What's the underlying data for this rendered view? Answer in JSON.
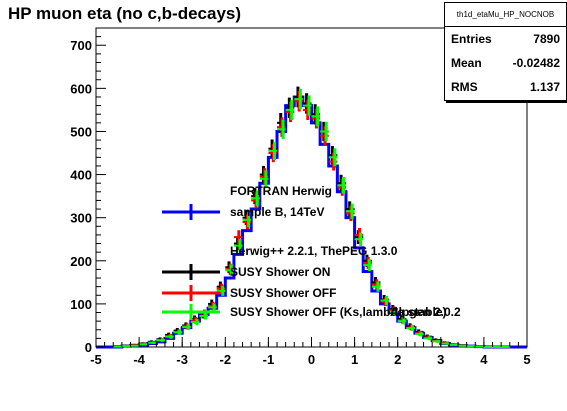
{
  "title": "HP muon eta (no c,b-decays)",
  "stats": {
    "name": "th1d_etaMu_HP_NOCNOB",
    "rows": [
      {
        "label": "Entries",
        "value": "7890"
      },
      {
        "label": "Mean",
        "value": "-0.02482"
      },
      {
        "label": "RMS",
        "value": "1.137"
      }
    ]
  },
  "legend": {
    "header1": "FORTRAN Herwig",
    "header2": "Herwig++ 2.2.1, ThePEG 1.3.0",
    "header3": "Alpgen 2.0.2",
    "entries": [
      {
        "label": "sample B, 14TeV",
        "color": "#0000ff"
      },
      {
        "label": "SUSY Shower ON",
        "color": "#000000"
      },
      {
        "label": "SUSY Shower OFF",
        "color": "#ff0000"
      },
      {
        "label": "SUSY Shower OFF (Ks,lambda stable)",
        "color": "#00ff00"
      }
    ]
  },
  "chart_data": {
    "type": "line",
    "xlim": [
      -5,
      5
    ],
    "ylim": [
      0,
      740
    ],
    "xticks": [
      -5,
      -4,
      -3,
      -2,
      -1,
      0,
      1,
      2,
      3,
      4,
      5
    ],
    "yticks": [
      0,
      100,
      200,
      300,
      400,
      500,
      600,
      700
    ],
    "bin_width": 0.2,
    "x": [
      -4.5,
      -4.3,
      -4.1,
      -3.9,
      -3.7,
      -3.5,
      -3.3,
      -3.1,
      -2.9,
      -2.7,
      -2.5,
      -2.3,
      -2.1,
      -1.9,
      -1.7,
      -1.5,
      -1.3,
      -1.1,
      -0.9,
      -0.7,
      -0.5,
      -0.3,
      -0.1,
      0.1,
      0.3,
      0.5,
      0.7,
      0.9,
      1.1,
      1.3,
      1.5,
      1.7,
      1.9,
      2.1,
      2.3,
      2.5,
      2.7,
      2.9,
      3.1,
      3.3,
      3.5,
      3.7,
      3.9,
      4.1,
      4.3,
      4.5
    ],
    "series": [
      {
        "name": "sample B, 14TeV",
        "color": "#0000ff",
        "style": "step",
        "values": [
          0,
          2,
          3,
          5,
          8,
          12,
          20,
          32,
          45,
          60,
          75,
          90,
          120,
          160,
          215,
          270,
          320,
          380,
          440,
          500,
          560,
          580,
          560,
          520,
          470,
          420,
          360,
          300,
          230,
          175,
          130,
          100,
          80,
          60,
          45,
          32,
          22,
          15,
          8,
          5,
          3,
          2,
          1,
          0,
          0,
          0
        ]
      },
      {
        "name": "SUSY Shower ON",
        "color": "#000000",
        "style": "errorbar",
        "values": [
          2,
          3,
          5,
          8,
          12,
          18,
          28,
          38,
          50,
          65,
          75,
          100,
          140,
          185,
          240,
          300,
          350,
          400,
          460,
          520,
          555,
          580,
          565,
          540,
          500,
          445,
          380,
          320,
          255,
          200,
          150,
          110,
          88,
          65,
          48,
          35,
          24,
          16,
          10,
          6,
          4,
          2,
          1,
          1,
          0,
          0
        ]
      },
      {
        "name": "SUSY Shower OFF",
        "color": "#ff0000",
        "style": "errorbar",
        "values": [
          1,
          2,
          4,
          7,
          10,
          15,
          25,
          35,
          48,
          62,
          78,
          95,
          135,
          180,
          255,
          290,
          340,
          395,
          450,
          510,
          545,
          570,
          550,
          530,
          490,
          430,
          370,
          310,
          260,
          195,
          145,
          105,
          85,
          62,
          45,
          32,
          22,
          14,
          9,
          5,
          3,
          2,
          1,
          0,
          0,
          0
        ]
      },
      {
        "name": "SUSY Shower OFF (Ks,lambda stable)",
        "color": "#00ff00",
        "style": "errorbar",
        "values": [
          1,
          2,
          3,
          6,
          10,
          16,
          24,
          34,
          46,
          58,
          72,
          92,
          130,
          178,
          235,
          295,
          345,
          390,
          455,
          505,
          550,
          575,
          560,
          535,
          500,
          440,
          375,
          315,
          250,
          190,
          140,
          108,
          82,
          60,
          44,
          30,
          20,
          13,
          8,
          5,
          3,
          2,
          1,
          0,
          0,
          0
        ]
      }
    ]
  }
}
